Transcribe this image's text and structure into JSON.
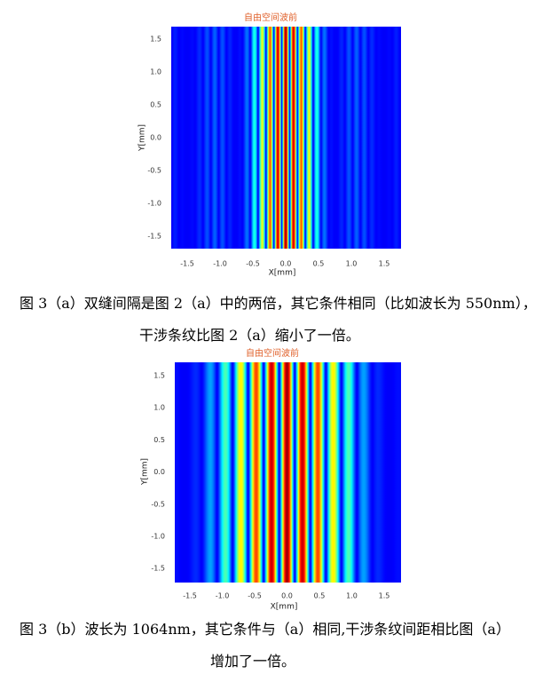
{
  "figures": [
    {
      "title": "自由空间波前",
      "xlabel": "X[mm]",
      "ylabel": "Y[mm]",
      "xticks": [
        "-1.5",
        "-1.0",
        "-0.5",
        "0.0",
        "0.5",
        "1.0",
        "1.5"
      ],
      "yticks": [
        "1.5",
        "1.0",
        "0.5",
        "0.0",
        "-0.5",
        "-1.0",
        "-1.5"
      ],
      "caption": [
        "图 3（a）双缝间隔是图 2（a）中的两倍，其它条件相同（比如波长为 550nm），",
        "干涉条纹比图 2（a）缩小了一倍。"
      ]
    },
    {
      "title": "自由空间波前",
      "xlabel": "X[mm]",
      "ylabel": "Y[mm]",
      "xticks": [
        "-1.5",
        "-1.0",
        "-0.5",
        "0.0",
        "0.5",
        "1.0",
        "1.5"
      ],
      "yticks": [
        "1.5",
        "1.0",
        "0.5",
        "0.0",
        "-0.5",
        "-1.0",
        "-1.5"
      ],
      "caption": [
        "图 3（b）波长为 1064nm，其它条件与（a）相同,干涉条纹间距相比图（a）",
        "增加了一倍。"
      ]
    }
  ]
}
